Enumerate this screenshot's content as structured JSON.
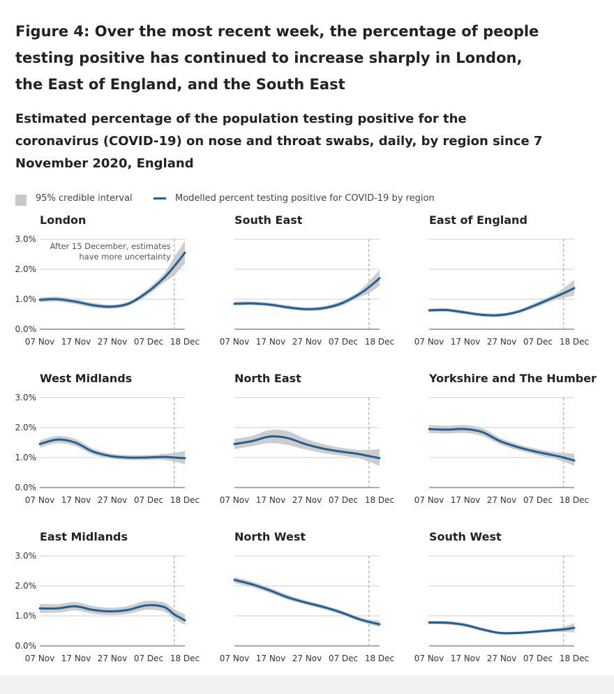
{
  "header": {
    "title": "Figure 4: Over the most recent week, the percentage of people testing positive has continued to increase sharply in London, the East of England, and the South East",
    "subtitle": "Estimated percentage of the population testing positive for the coronavirus (COVID-19) on nose and throat swabs, daily, by region since 7 November 2020, England"
  },
  "legend": {
    "interval_label": "95% credible interval",
    "line_label": "Modelled percent testing positive for COVID-19 by region"
  },
  "colors": {
    "line": "#206095",
    "band": "#c8c8c8",
    "grid": "#cfcfcf"
  },
  "chart_data": {
    "type": "line",
    "x": [
      0,
      5,
      10,
      15,
      20,
      25,
      30,
      35,
      38,
      41
    ],
    "x_tick_labels": [
      "07 Nov",
      "17 Nov",
      "27 Nov",
      "07 Dec",
      "18 Dec"
    ],
    "y_tick_labels": [
      "0.0%",
      "1.0%",
      "2.0%",
      "3.0%"
    ],
    "xlim": [
      0,
      41
    ],
    "ylim": [
      0,
      3
    ],
    "vline_x": 38,
    "annotation": "After 15 December, estimates have more uncertainty",
    "panels": [
      {
        "title": "London",
        "annotated": true,
        "values": [
          0.98,
          1.0,
          0.92,
          0.8,
          0.75,
          0.85,
          1.2,
          1.7,
          2.1,
          2.55
        ],
        "lower": [
          0.9,
          0.92,
          0.84,
          0.72,
          0.68,
          0.78,
          1.1,
          1.55,
          1.8,
          2.2
        ],
        "upper": [
          1.06,
          1.08,
          1.0,
          0.88,
          0.82,
          0.92,
          1.3,
          1.85,
          2.4,
          2.95
        ]
      },
      {
        "title": "South East",
        "values": [
          0.85,
          0.86,
          0.82,
          0.73,
          0.67,
          0.7,
          0.85,
          1.15,
          1.4,
          1.7
        ],
        "lower": [
          0.78,
          0.8,
          0.76,
          0.67,
          0.61,
          0.63,
          0.77,
          1.05,
          1.2,
          1.45
        ],
        "upper": [
          0.92,
          0.93,
          0.88,
          0.8,
          0.73,
          0.77,
          0.93,
          1.25,
          1.6,
          1.98
        ]
      },
      {
        "title": "East of England",
        "values": [
          0.63,
          0.64,
          0.56,
          0.48,
          0.47,
          0.58,
          0.8,
          1.05,
          1.2,
          1.37
        ],
        "lower": [
          0.57,
          0.58,
          0.5,
          0.42,
          0.41,
          0.52,
          0.72,
          0.95,
          1.05,
          1.12
        ],
        "upper": [
          0.69,
          0.7,
          0.62,
          0.54,
          0.53,
          0.64,
          0.88,
          1.15,
          1.37,
          1.65
        ]
      },
      {
        "title": "West Midlands",
        "values": [
          1.45,
          1.6,
          1.5,
          1.2,
          1.05,
          1.0,
          1.0,
          1.02,
          1.0,
          0.98
        ],
        "lower": [
          1.33,
          1.48,
          1.38,
          1.1,
          0.97,
          0.92,
          0.92,
          0.92,
          0.86,
          0.78
        ],
        "upper": [
          1.57,
          1.72,
          1.62,
          1.3,
          1.13,
          1.08,
          1.08,
          1.12,
          1.16,
          1.22
        ]
      },
      {
        "title": "North East",
        "values": [
          1.45,
          1.55,
          1.7,
          1.65,
          1.45,
          1.3,
          1.2,
          1.12,
          1.05,
          0.98
        ],
        "lower": [
          1.28,
          1.38,
          1.48,
          1.42,
          1.27,
          1.15,
          1.07,
          0.98,
          0.86,
          0.72
        ],
        "upper": [
          1.62,
          1.72,
          1.92,
          1.88,
          1.63,
          1.45,
          1.33,
          1.26,
          1.26,
          1.28
        ]
      },
      {
        "title": "Yorkshire and The Humber",
        "values": [
          1.95,
          1.93,
          1.95,
          1.85,
          1.55,
          1.35,
          1.2,
          1.08,
          1.0,
          0.9
        ],
        "lower": [
          1.82,
          1.8,
          1.82,
          1.72,
          1.44,
          1.25,
          1.1,
          0.97,
          0.86,
          0.72
        ],
        "upper": [
          2.08,
          2.06,
          2.08,
          1.98,
          1.66,
          1.45,
          1.3,
          1.19,
          1.16,
          1.12
        ]
      },
      {
        "title": "East Midlands",
        "values": [
          1.25,
          1.25,
          1.32,
          1.2,
          1.15,
          1.2,
          1.35,
          1.3,
          1.05,
          0.85
        ],
        "lower": [
          1.1,
          1.11,
          1.18,
          1.07,
          1.03,
          1.07,
          1.2,
          1.15,
          0.9,
          0.7
        ],
        "upper": [
          1.4,
          1.39,
          1.46,
          1.33,
          1.27,
          1.33,
          1.5,
          1.45,
          1.22,
          1.05
        ]
      },
      {
        "title": "North West",
        "values": [
          2.2,
          2.05,
          1.85,
          1.62,
          1.45,
          1.3,
          1.12,
          0.9,
          0.8,
          0.72
        ],
        "lower": [
          2.1,
          1.96,
          1.76,
          1.54,
          1.38,
          1.23,
          1.05,
          0.83,
          0.72,
          0.62
        ],
        "upper": [
          2.3,
          2.14,
          1.94,
          1.7,
          1.52,
          1.37,
          1.19,
          0.97,
          0.88,
          0.84
        ]
      },
      {
        "title": "South West",
        "values": [
          0.78,
          0.77,
          0.7,
          0.55,
          0.43,
          0.43,
          0.47,
          0.52,
          0.55,
          0.6
        ],
        "lower": [
          0.72,
          0.71,
          0.64,
          0.49,
          0.38,
          0.38,
          0.42,
          0.46,
          0.46,
          0.45
        ],
        "upper": [
          0.84,
          0.83,
          0.76,
          0.61,
          0.48,
          0.48,
          0.52,
          0.58,
          0.64,
          0.76
        ]
      }
    ]
  }
}
